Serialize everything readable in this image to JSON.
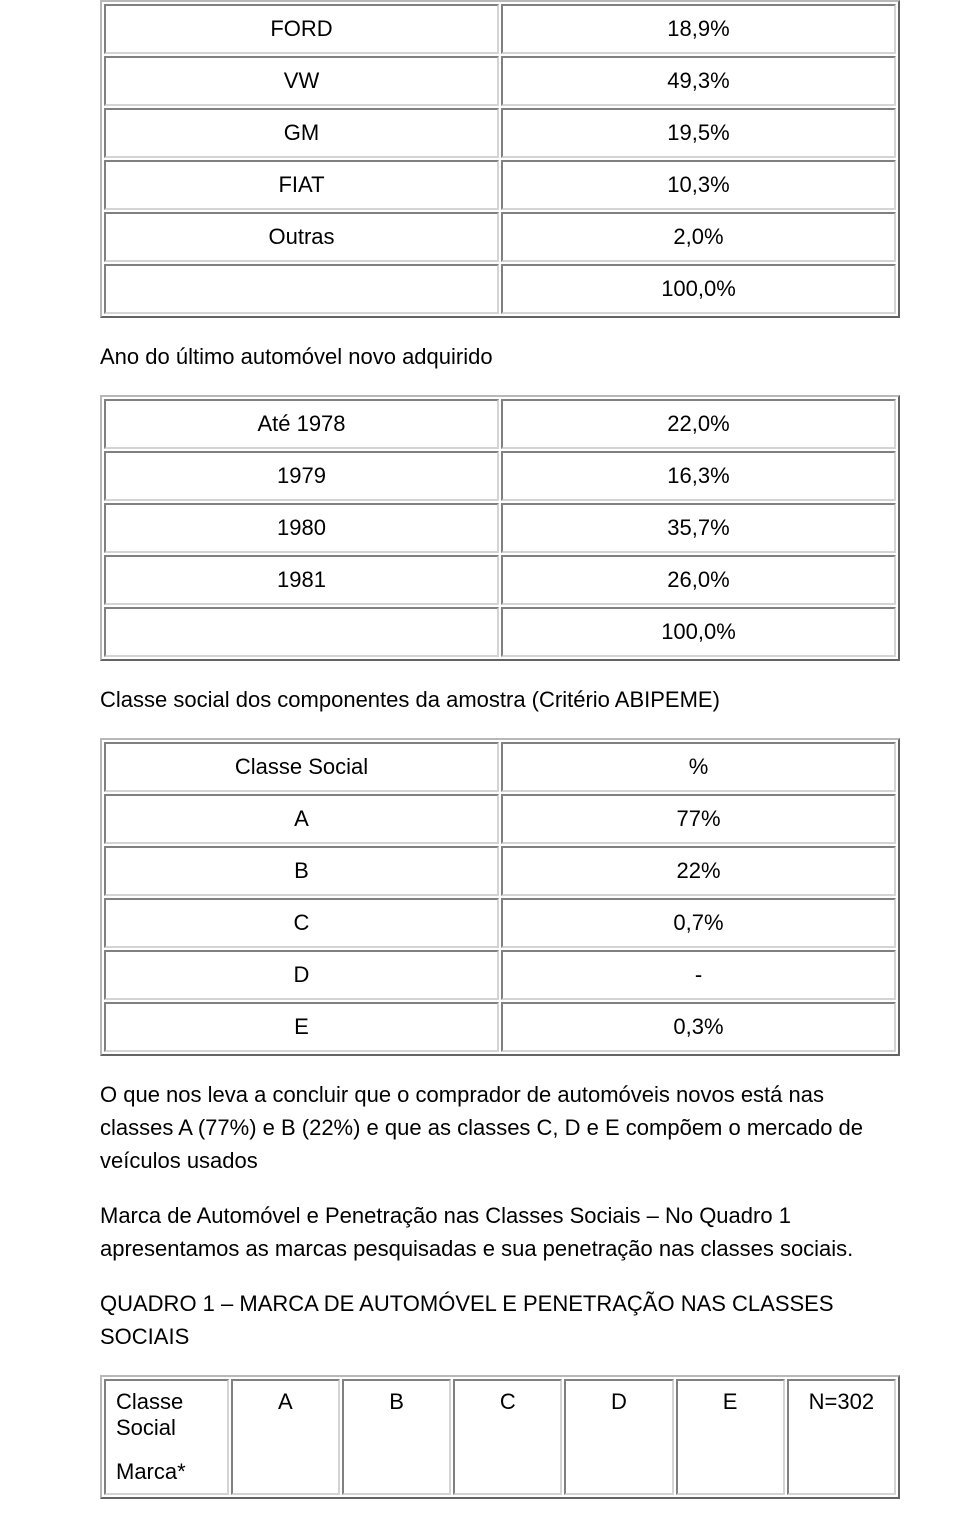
{
  "marca_table": {
    "rows": [
      {
        "label": "FORD",
        "value": "18,9%"
      },
      {
        "label": "VW",
        "value": "49,3%"
      },
      {
        "label": "GM",
        "value": "19,5%"
      },
      {
        "label": "FIAT",
        "value": "10,3%"
      },
      {
        "label": "Outras",
        "value": "2,0%"
      },
      {
        "label": "",
        "value": "100,0%"
      }
    ]
  },
  "heading_ano": "Ano do último automóvel novo adquirido",
  "ano_table": {
    "rows": [
      {
        "label": "Até 1978",
        "value": "22,0%"
      },
      {
        "label": "1979",
        "value": "16,3%"
      },
      {
        "label": "1980",
        "value": "35,7%"
      },
      {
        "label": "1981",
        "value": "26,0%"
      },
      {
        "label": "",
        "value": "100,0%"
      }
    ]
  },
  "heading_classe": "Classe social dos componentes da amostra (Critério ABIPEME)",
  "classe_table": {
    "rows": [
      {
        "label": "Classe Social",
        "value": "%"
      },
      {
        "label": "A",
        "value": "77%"
      },
      {
        "label": "B",
        "value": "22%"
      },
      {
        "label": "C",
        "value": "0,7%"
      },
      {
        "label": "D",
        "value": "-"
      },
      {
        "label": "E",
        "value": "0,3%"
      }
    ]
  },
  "para_conclusao": "O que nos leva a concluir que o comprador de automóveis novos está nas classes A (77%) e B (22%) e que as classes C, D e E compõem o mercado de veículos usados",
  "para_marca_penet": "Marca de Automóvel e Penetração nas Classes Sociais – No Quadro 1 apresentamos as marcas pesquisadas e sua penetração nas classes sociais.",
  "para_quadro_title": "QUADRO 1 – MARCA DE AUTOMÓVEL E PENETRAÇÃO NAS CLASSES SOCIAIS",
  "quadro1": {
    "header_left_line1": "Classe Social",
    "header_left_line2": "Marca*",
    "cols": [
      "A",
      "B",
      "C",
      "D",
      "E",
      "N=302"
    ]
  }
}
